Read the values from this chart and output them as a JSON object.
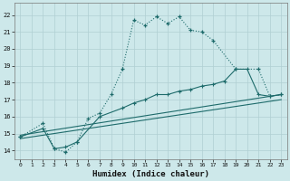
{
  "xlabel": "Humidex (Indice chaleur)",
  "bg_color": "#cde8ea",
  "grid_color": "#b0cfd2",
  "line_color": "#1e6b6b",
  "xlim": [
    -0.5,
    23.5
  ],
  "ylim": [
    13.5,
    22.7
  ],
  "xticks": [
    0,
    1,
    2,
    3,
    4,
    5,
    6,
    7,
    8,
    9,
    10,
    11,
    12,
    13,
    14,
    15,
    16,
    17,
    18,
    19,
    20,
    21,
    22,
    23
  ],
  "yticks": [
    14,
    15,
    16,
    17,
    18,
    19,
    20,
    21,
    22
  ],
  "curve_x": [
    0,
    2,
    3,
    4,
    5,
    6,
    7,
    8,
    9,
    10,
    11,
    12,
    13,
    14,
    15,
    16,
    17,
    19,
    21,
    22,
    23
  ],
  "curve_y": [
    14.8,
    15.6,
    14.1,
    13.9,
    14.5,
    15.9,
    16.2,
    17.3,
    18.8,
    21.7,
    21.4,
    21.9,
    21.5,
    21.9,
    21.1,
    21.0,
    20.5,
    18.8,
    18.8,
    17.2,
    17.3
  ],
  "line2_x": [
    0,
    2,
    3,
    4,
    5,
    7,
    9,
    10,
    11,
    12,
    13,
    14,
    15,
    16,
    17,
    18,
    19,
    20,
    21,
    22,
    23
  ],
  "line2_y": [
    14.8,
    15.3,
    14.1,
    14.2,
    14.5,
    16.0,
    16.5,
    16.8,
    17.0,
    17.3,
    17.3,
    17.5,
    17.6,
    17.8,
    17.9,
    18.1,
    18.8,
    18.8,
    17.3,
    17.2,
    17.3
  ],
  "line3_x": [
    0,
    23
  ],
  "line3_y": [
    14.9,
    17.3
  ],
  "line4_x": [
    0,
    23
  ],
  "line4_y": [
    14.7,
    17.0
  ]
}
